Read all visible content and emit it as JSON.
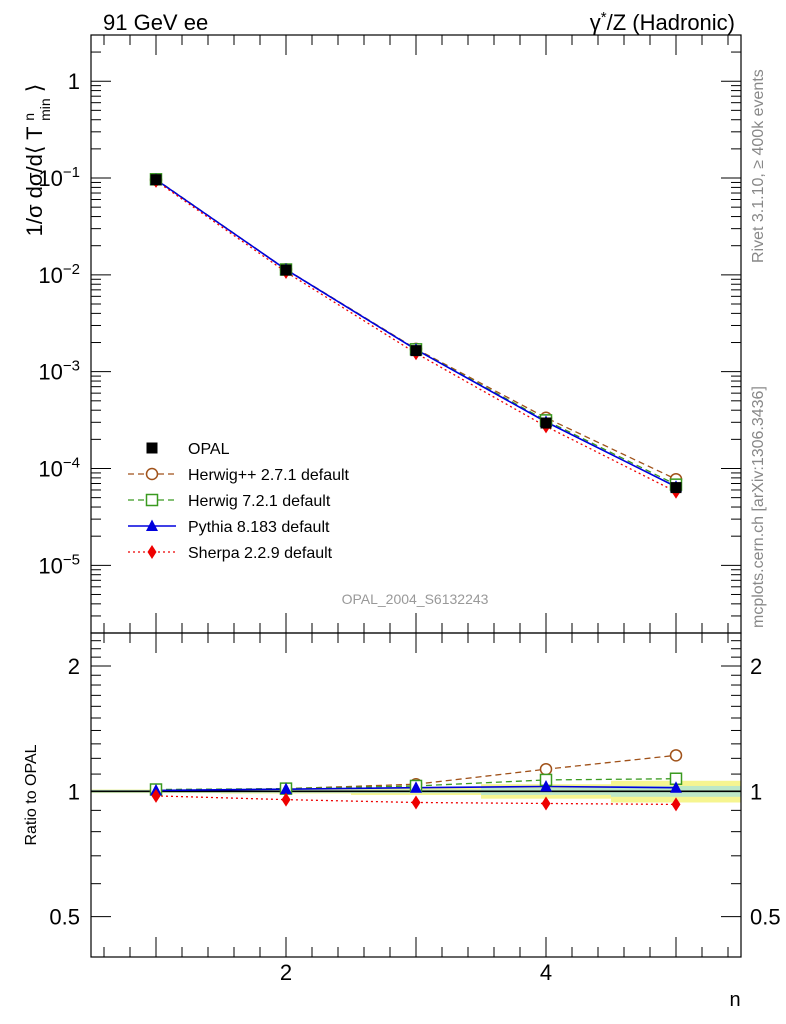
{
  "header": {
    "left": "91 GeV ee",
    "right_sup": "*",
    "right_pre": "γ",
    "right_post": "/Z (Hadronic)"
  },
  "side_labels": {
    "rivet": "Rivet 3.1.10, ≥ 400k events",
    "mcplots": "mcplots.cern.ch [arXiv:1306.3436]"
  },
  "watermark": "OPAL_2004_S6132243",
  "colors": {
    "opal": "#000000",
    "herwigpp": "#a0521a",
    "herwig7": "#3a9a20",
    "pythia": "#0000dd",
    "sherpa": "#ee0000",
    "band_inner": "#bde8c8",
    "band_outer": "#f6f590"
  },
  "chart_data": [
    {
      "type": "line",
      "panel": "main",
      "ylabel": "1/σ dσ/d⟨ T^n_min ⟩",
      "yscale": "log",
      "ylim": [
        2e-06,
        3
      ],
      "xlim": [
        0.5,
        5.5
      ],
      "y_tick_labels": [
        {
          "value": 1,
          "base": "1",
          "exp": ""
        },
        {
          "value": 0.1,
          "base": "10",
          "exp": "−1"
        },
        {
          "value": 0.01,
          "base": "10",
          "exp": "−2"
        },
        {
          "value": 0.001,
          "base": "10",
          "exp": "−3"
        },
        {
          "value": 0.0001,
          "base": "10",
          "exp": "−4"
        },
        {
          "value": 1e-05,
          "base": "10",
          "exp": "−5"
        }
      ],
      "x": [
        1,
        2,
        3,
        4,
        5
      ],
      "series": [
        {
          "key": "opal",
          "name": "OPAL",
          "marker": "square-filled",
          "line": "none",
          "values": [
            0.096,
            0.0112,
            0.00165,
            0.000295,
            6.35e-05
          ]
        },
        {
          "key": "herwigpp",
          "name": "Herwig++ 2.7.1 default",
          "marker": "circle-open",
          "line": "dashed",
          "values": [
            0.096,
            0.0114,
            0.00172,
            0.000334,
            7.75e-05
          ]
        },
        {
          "key": "herwig7",
          "name": "Herwig 7.2.1 default",
          "marker": "square-open",
          "line": "dashed",
          "values": [
            0.097,
            0.01135,
            0.0017,
            0.000314,
            6.81e-05
          ]
        },
        {
          "key": "pythia",
          "name": "Pythia 8.183 default",
          "marker": "triangle-filled",
          "line": "solid",
          "values": [
            0.0963,
            0.01135,
            0.00169,
            0.000303,
            6.48e-05
          ]
        },
        {
          "key": "sherpa",
          "name": "Sherpa 2.2.9 default",
          "marker": "diamond-filled",
          "line": "dotted",
          "values": [
            0.0935,
            0.0107,
            0.00155,
            0.000272,
            5.75e-05
          ]
        }
      ]
    },
    {
      "type": "line",
      "panel": "ratio",
      "ylabel": "Ratio to OPAL",
      "xlabel": "n",
      "yscale": "log",
      "ylim": [
        0.4,
        2.4
      ],
      "xlim": [
        0.5,
        5.5
      ],
      "y_tick_labels": [
        {
          "value": 2,
          "label": "2"
        },
        {
          "value": 1,
          "label": "1"
        },
        {
          "value": 0.5,
          "label": "0.5"
        }
      ],
      "x_tick_labels": [
        {
          "value": 2,
          "label": "2"
        },
        {
          "value": 4,
          "label": "4"
        }
      ],
      "x": [
        1,
        2,
        3,
        4,
        5
      ],
      "band": {
        "inner": [
          0.008,
          0.008,
          0.01,
          0.02,
          0.03
        ],
        "outer": [
          0.01,
          0.012,
          0.02,
          0.04,
          0.06
        ]
      },
      "series": [
        {
          "key": "herwigpp",
          "values": [
            1.005,
            1.015,
            1.04,
            1.13,
            1.22
          ]
        },
        {
          "key": "herwig7",
          "values": [
            1.01,
            1.015,
            1.03,
            1.065,
            1.072
          ]
        },
        {
          "key": "pythia",
          "values": [
            1.005,
            1.012,
            1.02,
            1.027,
            1.02
          ]
        },
        {
          "key": "sherpa",
          "values": [
            0.975,
            0.955,
            0.94,
            0.935,
            0.93
          ]
        }
      ]
    }
  ]
}
